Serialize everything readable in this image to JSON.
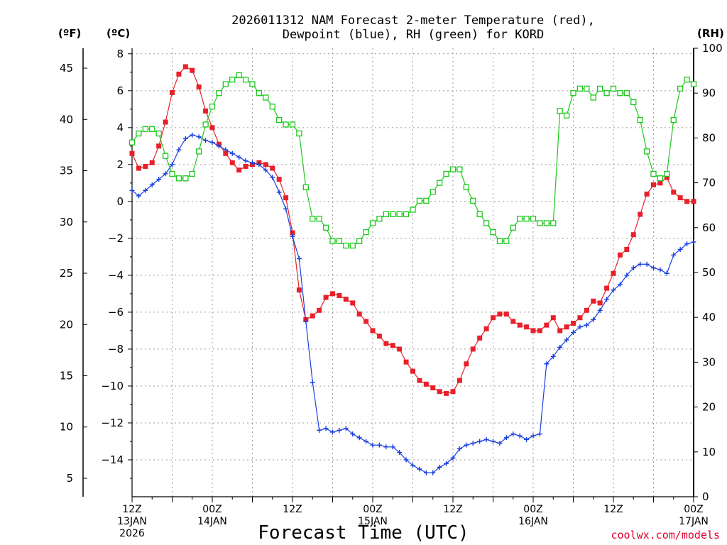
{
  "chart_data": {
    "type": "line",
    "title_line1": "2026011312 NAM Forecast 2-meter Temperature (red),",
    "title_line2": "Dewpoint (blue), RH (green) for KORD",
    "xlabel": "Forecast Time (UTC)",
    "credit": "coolwx.com/models",
    "x_range_hours": [
      0,
      84
    ],
    "x_step_hours": 1,
    "x_ticks": [
      {
        "hour": 0,
        "line1": "12Z",
        "line2": "13JAN",
        "line3": "2026"
      },
      {
        "hour": 12,
        "line1": "00Z",
        "line2": "14JAN",
        "line3": ""
      },
      {
        "hour": 24,
        "line1": "12Z",
        "line2": "",
        "line3": ""
      },
      {
        "hour": 36,
        "line1": "00Z",
        "line2": "15JAN",
        "line3": ""
      },
      {
        "hour": 48,
        "line1": "12Z",
        "line2": "",
        "line3": ""
      },
      {
        "hour": 60,
        "line1": "00Z",
        "line2": "16JAN",
        "line3": ""
      },
      {
        "hour": 72,
        "line1": "12Z",
        "line2": "",
        "line3": ""
      },
      {
        "hour": 84,
        "line1": "00Z",
        "line2": "17JAN",
        "line3": ""
      }
    ],
    "axis_c": {
      "label": "(ºC)",
      "ylim": [
        -16,
        8.3
      ],
      "ticks": [
        "8",
        "6",
        "4",
        "2",
        "0",
        "−2",
        "−4",
        "−6",
        "−8",
        "−10",
        "−12",
        "−14"
      ],
      "tick_values": [
        8,
        6,
        4,
        2,
        0,
        -2,
        -4,
        -6,
        -8,
        -10,
        -12,
        -14
      ]
    },
    "axis_f": {
      "label": "(ºF)",
      "ticks": [
        "45",
        "40",
        "35",
        "30",
        "25",
        "20",
        "15",
        "10",
        "5"
      ],
      "tick_values": [
        45,
        40,
        35,
        30,
        25,
        20,
        15,
        10,
        5
      ]
    },
    "axis_rh": {
      "label": "(RH)",
      "ylim": [
        0,
        100
      ],
      "ticks": [
        "100",
        "90",
        "80",
        "70",
        "60",
        "50",
        "40",
        "30",
        "20",
        "10",
        "0"
      ],
      "tick_values": [
        100,
        90,
        80,
        70,
        60,
        50,
        40,
        30,
        20,
        10,
        0
      ]
    },
    "series": [
      {
        "name": "2-meter Temperature",
        "axis": "C",
        "color": "#e8202a",
        "marker": "filled-square",
        "values": [
          2.6,
          1.8,
          1.9,
          2.1,
          3,
          4.3,
          5.9,
          6.9,
          7.3,
          7.1,
          6.2,
          4.9,
          4,
          3.1,
          2.6,
          2.1,
          1.7,
          1.9,
          2,
          2.1,
          2,
          1.8,
          1.2,
          0.2,
          -1.7,
          -4.8,
          -6.4,
          -6.2,
          -5.9,
          -5.2,
          -5,
          -5.1,
          -5.3,
          -5.5,
          -6.1,
          -6.5,
          -7,
          -7.3,
          -7.7,
          -7.8,
          -8,
          -8.7,
          -9.2,
          -9.7,
          -9.9,
          -10.1,
          -10.3,
          -10.4,
          -10.3,
          -9.7,
          -8.8,
          -8,
          -7.4,
          -6.9,
          -6.3,
          -6.1,
          -6.1,
          -6.5,
          -6.7,
          -6.8,
          -7,
          -7,
          -6.7,
          -6.3,
          -7,
          -6.8,
          -6.6,
          -6.3,
          -5.9,
          -5.4,
          -5.5,
          -4.7,
          -3.9,
          -2.9,
          -2.6,
          -1.8,
          -0.7,
          0.4,
          0.9,
          1,
          1.3,
          0.5,
          0.2,
          0,
          0
        ]
      },
      {
        "name": "Dewpoint",
        "axis": "C",
        "color": "#1a3fe0",
        "marker": "plus",
        "values": [
          0.6,
          0.3,
          0.6,
          0.9,
          1.2,
          1.5,
          2,
          2.8,
          3.4,
          3.6,
          3.5,
          3.3,
          3.2,
          3,
          2.8,
          2.6,
          2.4,
          2.2,
          2.1,
          2,
          1.7,
          1.3,
          0.5,
          -0.4,
          -1.9,
          -3.1,
          -6.5,
          -9.8,
          -12.4,
          -12.3,
          -12.5,
          -12.4,
          -12.3,
          -12.6,
          -12.8,
          -13,
          -13.2,
          -13.2,
          -13.3,
          -13.3,
          -13.6,
          -14,
          -14.3,
          -14.5,
          -14.7,
          -14.7,
          -14.4,
          -14.2,
          -13.9,
          -13.4,
          -13.2,
          -13.1,
          -13,
          -12.9,
          -13,
          -13.1,
          -12.8,
          -12.6,
          -12.7,
          -12.9,
          -12.7,
          -12.6,
          -8.8,
          -8.4,
          -7.9,
          -7.5,
          -7.1,
          -6.8,
          -6.7,
          -6.4,
          -5.9,
          -5.3,
          -4.8,
          -4.5,
          -4,
          -3.6,
          -3.4,
          -3.4,
          -3.6,
          -3.7,
          -3.9,
          -2.9,
          -2.6,
          -2.3,
          -2.2
        ]
      },
      {
        "name": "Relative Humidity",
        "axis": "RH",
        "color": "#1ec81e",
        "marker": "open-square",
        "values": [
          79,
          81,
          82,
          82,
          81,
          76,
          72,
          71,
          71,
          72,
          77,
          83,
          87,
          90,
          92,
          93,
          94,
          93,
          92,
          90,
          89,
          87,
          84,
          83,
          83,
          81,
          69,
          62,
          62,
          60,
          57,
          57,
          56,
          56,
          57,
          59,
          61,
          62,
          63,
          63,
          63,
          63,
          64,
          66,
          66,
          68,
          70,
          72,
          73,
          73,
          69,
          66,
          63,
          61,
          59,
          57,
          57,
          60,
          62,
          62,
          62,
          61,
          61,
          61,
          86,
          85,
          90,
          91,
          91,
          89,
          91,
          90,
          91,
          90,
          90,
          88,
          84,
          77,
          72,
          71,
          72,
          84,
          91,
          93,
          92
        ]
      }
    ]
  }
}
